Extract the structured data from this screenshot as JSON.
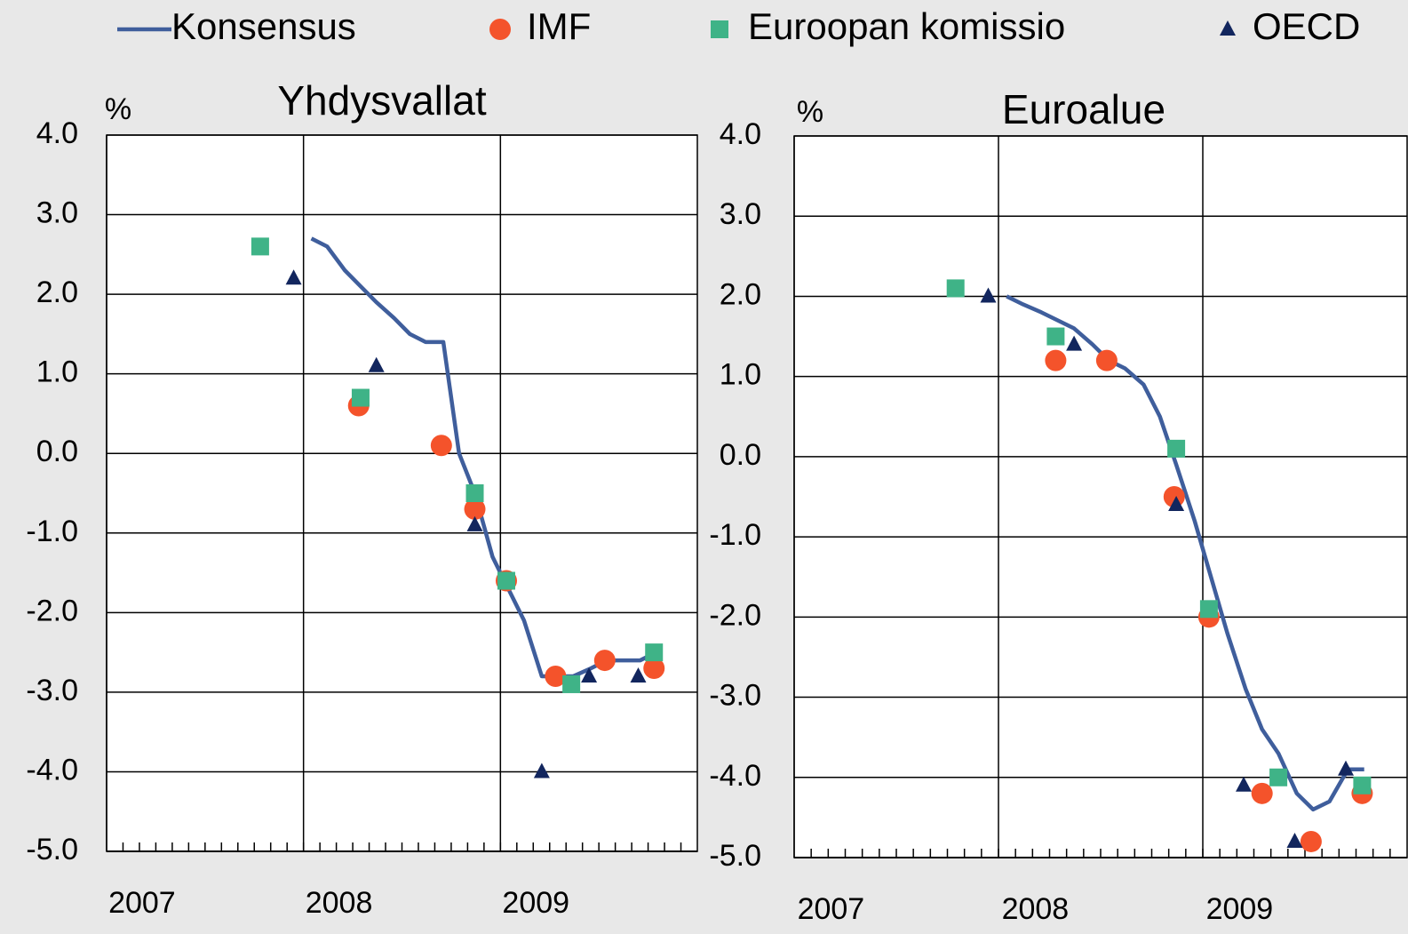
{
  "chart_data": [
    {
      "type": "line",
      "title": "Yhdysvallat",
      "y_label": "%",
      "xlim": [
        2007,
        2010
      ],
      "xticks": [
        2007,
        2008,
        2009
      ],
      "ylim": [
        -5,
        4
      ],
      "yticks": [
        {
          "value": 4,
          "label": "4.0"
        },
        {
          "value": 3,
          "label": "3.0"
        },
        {
          "value": 2,
          "label": "2.0"
        },
        {
          "value": 1,
          "label": "1.0"
        },
        {
          "value": 0,
          "label": "0.0"
        },
        {
          "value": -1,
          "label": "-1.0"
        },
        {
          "value": -2,
          "label": "-2.0"
        },
        {
          "value": -3,
          "label": "-3.0"
        },
        {
          "value": -4,
          "label": "-4.0"
        },
        {
          "value": -5,
          "label": "-5.0"
        }
      ],
      "grid": true,
      "series": [
        {
          "name": "Konsensus",
          "marker": "line",
          "color": "#3f5e9c",
          "x": [
            2008.04,
            2008.12,
            2008.21,
            2008.29,
            2008.37,
            2008.46,
            2008.54,
            2008.62,
            2008.71,
            2008.79,
            2008.87,
            2008.96,
            2009.04,
            2009.12,
            2009.21,
            2009.29,
            2009.37,
            2009.46,
            2009.54,
            2009.62,
            2009.71,
            2009.79
          ],
          "values": [
            2.7,
            2.6,
            2.3,
            2.1,
            1.9,
            1.7,
            1.5,
            1.4,
            1.4,
            0.0,
            -0.5,
            -1.3,
            -1.7,
            -2.1,
            -2.8,
            -2.8,
            -2.8,
            -2.7,
            -2.6,
            -2.6,
            -2.6,
            -2.5
          ]
        },
        {
          "name": "IMF",
          "marker": "circle",
          "color": "#f4532b",
          "x": [
            2008.28,
            2008.7,
            2008.87,
            2009.03,
            2009.28,
            2009.53,
            2009.78
          ],
          "values": [
            0.6,
            0.1,
            -0.7,
            -1.6,
            -2.8,
            -2.6,
            -2.7
          ]
        },
        {
          "name": "Euroopan komissio",
          "marker": "square",
          "color": "#3fb387",
          "x": [
            2007.78,
            2008.29,
            2008.87,
            2009.03,
            2009.36,
            2009.78
          ],
          "values": [
            2.6,
            0.7,
            -0.5,
            -1.6,
            -2.9,
            -2.5
          ]
        },
        {
          "name": "OECD",
          "marker": "triangle",
          "color": "#12265e",
          "x": [
            2007.95,
            2008.37,
            2008.87,
            2009.21,
            2009.45,
            2009.7
          ],
          "values": [
            2.2,
            1.1,
            -0.9,
            -4.0,
            -2.8,
            -2.8
          ]
        }
      ]
    },
    {
      "type": "line",
      "title": "Euroalue",
      "y_label": "%",
      "xlim": [
        2007,
        2010
      ],
      "xticks": [
        2007,
        2008,
        2009
      ],
      "ylim": [
        -5,
        4
      ],
      "yticks": [
        {
          "value": 4,
          "label": "4.0"
        },
        {
          "value": 3,
          "label": "3.0"
        },
        {
          "value": 2,
          "label": "2.0"
        },
        {
          "value": 1,
          "label": "1.0"
        },
        {
          "value": 0,
          "label": "0.0"
        },
        {
          "value": -1,
          "label": "-1.0"
        },
        {
          "value": -2,
          "label": "-2.0"
        },
        {
          "value": -3,
          "label": "-3.0"
        },
        {
          "value": -4,
          "label": "-4.0"
        },
        {
          "value": -5,
          "label": "-5.0"
        }
      ],
      "grid": true,
      "series": [
        {
          "name": "Konsensus",
          "marker": "line",
          "color": "#3f5e9c",
          "x": [
            2008.04,
            2008.12,
            2008.21,
            2008.29,
            2008.37,
            2008.46,
            2008.54,
            2008.62,
            2008.71,
            2008.79,
            2008.87,
            2008.96,
            2009.04,
            2009.12,
            2009.21,
            2009.29,
            2009.37,
            2009.46,
            2009.54,
            2009.62,
            2009.71,
            2009.79
          ],
          "values": [
            2.0,
            1.9,
            1.8,
            1.7,
            1.6,
            1.4,
            1.2,
            1.1,
            0.9,
            0.5,
            -0.1,
            -0.8,
            -1.5,
            -2.2,
            -2.9,
            -3.4,
            -3.7,
            -4.2,
            -4.4,
            -4.3,
            -3.9,
            -3.9
          ]
        },
        {
          "name": "IMF",
          "marker": "circle",
          "color": "#f4532b",
          "x": [
            2008.28,
            2008.53,
            2008.86,
            2009.03,
            2009.29,
            2009.53,
            2009.78
          ],
          "values": [
            1.2,
            1.2,
            -0.5,
            -2.0,
            -4.2,
            -4.8,
            -4.2
          ]
        },
        {
          "name": "Euroopan komissio",
          "marker": "square",
          "color": "#3fb387",
          "x": [
            2007.79,
            2008.28,
            2008.87,
            2009.03,
            2009.37,
            2009.78
          ],
          "values": [
            2.1,
            1.5,
            0.1,
            -1.9,
            -4.0,
            -4.1
          ]
        },
        {
          "name": "OECD",
          "marker": "triangle",
          "color": "#12265e",
          "x": [
            2007.95,
            2008.37,
            2008.87,
            2009.2,
            2009.45,
            2009.7
          ],
          "values": [
            2.0,
            1.4,
            -0.6,
            -4.1,
            -4.8,
            -3.9
          ]
        }
      ]
    }
  ]
}
